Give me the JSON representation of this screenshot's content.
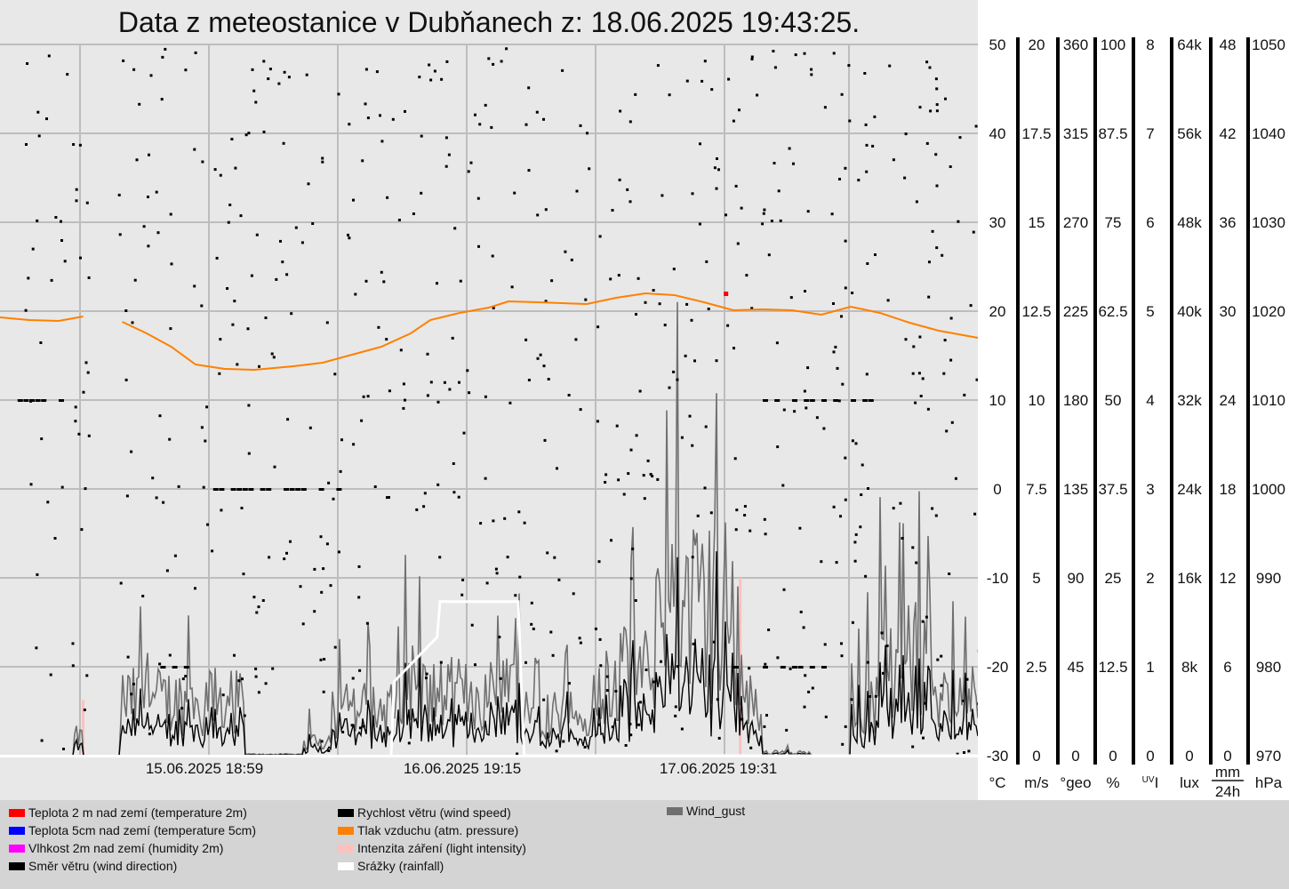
{
  "chart_data": {
    "type": "line",
    "title": "Data z meteostanice v Dubňanech z: 18.06.2025 19:43:25.",
    "x_tick_labels": [
      "15.06.2025 18:59",
      "16.06.2025 19:15",
      "17.06.2025 19:31"
    ],
    "grid": true,
    "legend_position": "bottom",
    "axes": [
      {
        "id": "temp",
        "unit": "°C",
        "ticks": [
          "50",
          "40",
          "30",
          "20",
          "10",
          "0",
          "-10",
          "-20",
          "-30"
        ]
      },
      {
        "id": "wind_speed",
        "unit": "m/s",
        "ticks": [
          "20",
          "17.5",
          "15",
          "12.5",
          "10",
          "7.5",
          "5",
          "2.5",
          "0"
        ]
      },
      {
        "id": "wind_dir",
        "unit": "°geo",
        "ticks": [
          "360",
          "315",
          "270",
          "225",
          "180",
          "135",
          "90",
          "45",
          "0"
        ]
      },
      {
        "id": "humidity",
        "unit": "%",
        "ticks": [
          "100",
          "87.5",
          "75",
          "62.5",
          "50",
          "37.5",
          "25",
          "12.5",
          "0"
        ]
      },
      {
        "id": "uv",
        "unit": "UVI",
        "unit_sup": "UV",
        "unit_main": "I",
        "ticks": [
          "8",
          "7",
          "6",
          "5",
          "4",
          "3",
          "2",
          "1",
          "0"
        ]
      },
      {
        "id": "lux",
        "unit": "lux",
        "ticks": [
          "64k",
          "56k",
          "48k",
          "40k",
          "32k",
          "24k",
          "16k",
          "8k",
          "0"
        ]
      },
      {
        "id": "rain",
        "unit": "mm/24h",
        "unit_num": "mm",
        "unit_den": "24h",
        "ticks": [
          "48",
          "42",
          "36",
          "30",
          "24",
          "18",
          "12",
          "6",
          "0"
        ]
      },
      {
        "id": "pressure",
        "unit": "hPa",
        "ticks": [
          "1050",
          "1040",
          "1030",
          "1020",
          "1010",
          "1000",
          "990",
          "980",
          "970"
        ]
      }
    ],
    "series": [
      {
        "name": "Teplota 2 m nad zemí (temperature 2m)",
        "color": "#ff0000",
        "axis": "temp"
      },
      {
        "name": "Teplota 5cm nad zemí (temperature 5cm)",
        "color": "#0000ff",
        "axis": "temp"
      },
      {
        "name": "Vlhkost 2m nad zemí (humidity 2m)",
        "color": "#ff00ff",
        "axis": "humidity"
      },
      {
        "name": "Směr větru (wind direction)",
        "color": "#000000",
        "axis": "wind_dir"
      },
      {
        "name": "Rychlost větru (wind speed)",
        "color": "#000000",
        "axis": "wind_speed"
      },
      {
        "name": "Tlak vzduchu (atm. pressure)",
        "color": "#ff8000",
        "axis": "pressure"
      },
      {
        "name": "Intenzita záření (light intensity)",
        "color": "#ffc0c0",
        "axis": "lux"
      },
      {
        "name": "Srážky (rainfall)",
        "color": "#ffffff",
        "axis": "rain"
      },
      {
        "name": "Wind_gust",
        "color": "#707070",
        "axis": "wind_speed"
      }
    ],
    "pressure_hpa": [
      [
        0,
        1019.3
      ],
      [
        0.03,
        1019.0
      ],
      [
        0.06,
        1018.9
      ],
      [
        0.085,
        1019.4
      ],
      [
        0.125,
        1018.8
      ],
      [
        0.15,
        1017.5
      ],
      [
        0.175,
        1016.0
      ],
      [
        0.2,
        1014.0
      ],
      [
        0.23,
        1013.5
      ],
      [
        0.26,
        1013.4
      ],
      [
        0.3,
        1013.8
      ],
      [
        0.33,
        1014.2
      ],
      [
        0.36,
        1015.1
      ],
      [
        0.39,
        1016.0
      ],
      [
        0.42,
        1017.5
      ],
      [
        0.44,
        1019.0
      ],
      [
        0.47,
        1019.8
      ],
      [
        0.5,
        1020.4
      ],
      [
        0.52,
        1021.1
      ],
      [
        0.55,
        1021.0
      ],
      [
        0.6,
        1020.8
      ],
      [
        0.63,
        1021.5
      ],
      [
        0.66,
        1022.0
      ],
      [
        0.69,
        1021.8
      ],
      [
        0.72,
        1021.0
      ],
      [
        0.75,
        1020.1
      ],
      [
        0.78,
        1020.2
      ],
      [
        0.81,
        1020.1
      ],
      [
        0.84,
        1019.6
      ],
      [
        0.87,
        1020.5
      ],
      [
        0.9,
        1019.8
      ],
      [
        0.93,
        1018.7
      ],
      [
        0.96,
        1017.8
      ],
      [
        1.0,
        1017.0
      ]
    ],
    "rainfall_mm_24h": [
      [
        0.4,
        0
      ],
      [
        0.403,
        5
      ],
      [
        0.447,
        8
      ],
      [
        0.45,
        10.4
      ],
      [
        0.53,
        10.4
      ],
      [
        0.533,
        5
      ],
      [
        0.536,
        0
      ],
      [
        1.0,
        0
      ]
    ],
    "temperature_2m_c": [
      [
        0.742,
        22.0
      ]
    ],
    "light_intensity_lux_k": [
      [
        0.085,
        5.0
      ],
      [
        0.757,
        16.0
      ]
    ]
  }
}
